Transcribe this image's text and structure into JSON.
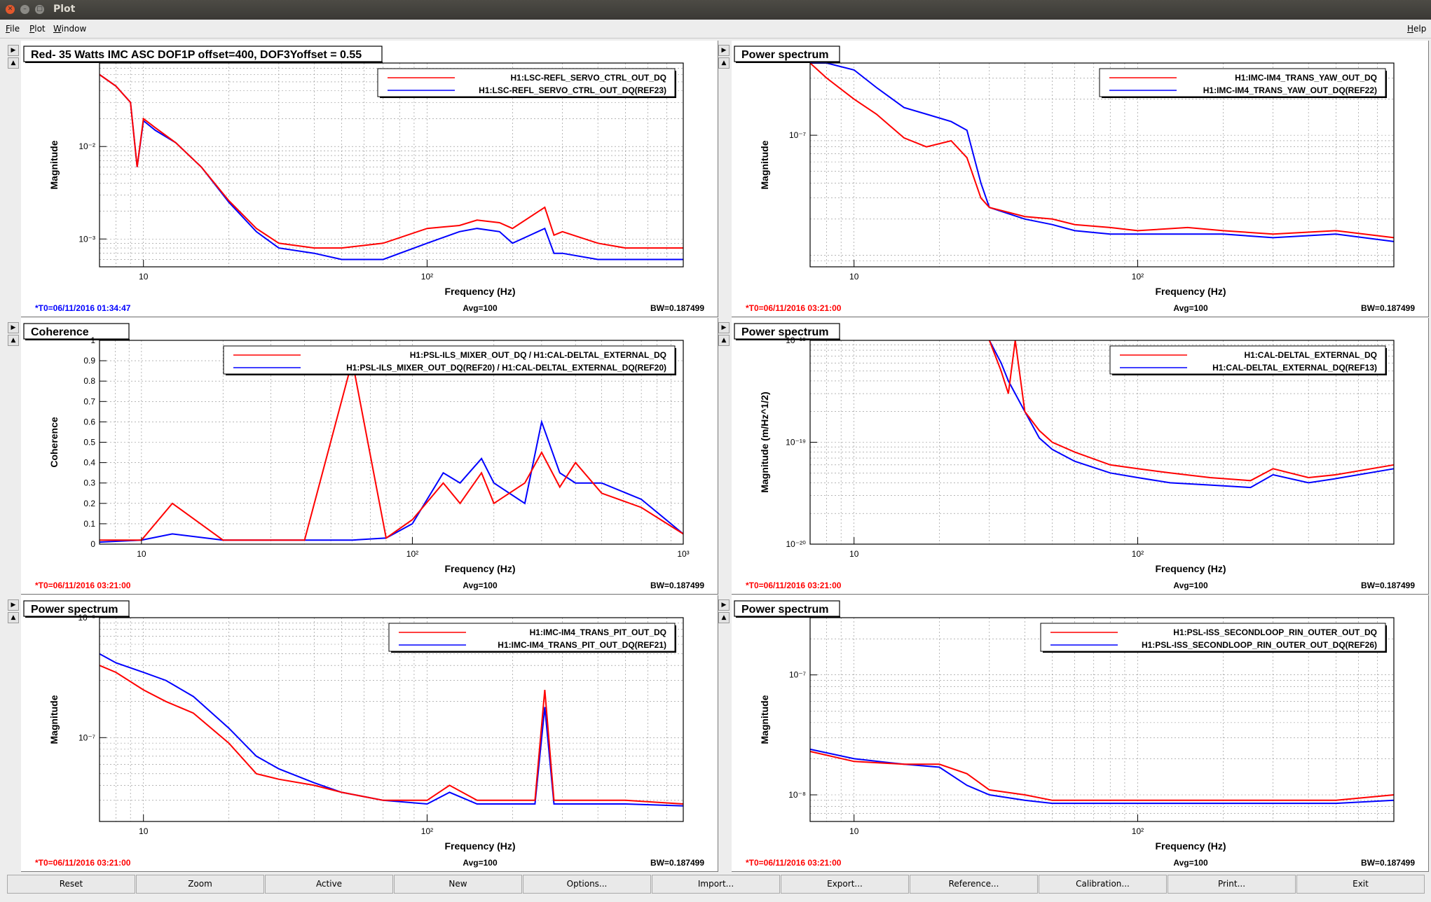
{
  "window": {
    "title": "Plot"
  },
  "menu": {
    "file": "File",
    "plot": "Plot",
    "window": "Window",
    "help": "Help"
  },
  "bottom_buttons": [
    "Reset",
    "Zoom",
    "Active",
    "New",
    "Options...",
    "Import...",
    "Export...",
    "Reference...",
    "Calibration...",
    "Print...",
    "Exit"
  ],
  "colors": {
    "trace_current": "#ff0000",
    "trace_reference": "#0000ff",
    "timestamp_current": "#ff0000",
    "timestamp_reference": "#0000ff"
  },
  "panels": [
    {
      "title": "Red- 35 Watts IMC ASC DOF1P offset=400, DOF3Yoffset = 0.55",
      "xlabel": "Frequency (Hz)",
      "ylabel": "Magnitude",
      "legend": [
        "H1:LSC-REFL_SERVO_CTRL_OUT_DQ",
        "H1:LSC-REFL_SERVO_CTRL_OUT_DQ(REF23)"
      ],
      "xticks": [
        "10",
        "10²"
      ],
      "yticks": [
        "10⁻²",
        "10⁻³"
      ],
      "t0": "*T0=06/11/2016 01:34:47",
      "t0_color": "#0000ff",
      "avg": "Avg=100",
      "bw": "BW=0.187499"
    },
    {
      "title": "Power spectrum",
      "xlabel": "Frequency (Hz)",
      "ylabel": "Magnitude",
      "legend": [
        "H1:IMC-IM4_TRANS_YAW_OUT_DQ",
        "H1:IMC-IM4_TRANS_YAW_OUT_DQ(REF22)"
      ],
      "xticks": [
        "10",
        "10²"
      ],
      "yticks": [
        "10⁻⁷"
      ],
      "t0": "*T0=06/11/2016 03:21:00",
      "t0_color": "#ff0000",
      "avg": "Avg=100",
      "bw": "BW=0.187499"
    },
    {
      "title": "Coherence",
      "xlabel": "Frequency (Hz)",
      "ylabel": "Coherence",
      "legend": [
        "H1:PSL-ILS_MIXER_OUT_DQ / H1:CAL-DELTAL_EXTERNAL_DQ",
        "H1:PSL-ILS_MIXER_OUT_DQ(REF20) / H1:CAL-DELTAL_EXTERNAL_DQ(REF20)"
      ],
      "xticks": [
        "10",
        "10²",
        "10³"
      ],
      "yticks": [
        "1",
        "0.9",
        "0.8",
        "0.7",
        "0.6",
        "0.5",
        "0.4",
        "0.3",
        "0.2",
        "0.1",
        "0"
      ],
      "t0": "*T0=06/11/2016 03:21:00",
      "t0_color": "#ff0000",
      "avg": "Avg=100",
      "bw": "BW=0.187499"
    },
    {
      "title": "Power spectrum",
      "xlabel": "Frequency (Hz)",
      "ylabel": "Magnitude (m/Hz^1/2)",
      "legend": [
        "H1:CAL-DELTAL_EXTERNAL_DQ",
        "H1:CAL-DELTAL_EXTERNAL_DQ(REF13)"
      ],
      "xticks": [
        "10",
        "10²"
      ],
      "yticks": [
        "10⁻¹⁸",
        "10⁻¹⁹",
        "10⁻²⁰"
      ],
      "t0": "*T0=06/11/2016 03:21:00",
      "t0_color": "#ff0000",
      "avg": "Avg=100",
      "bw": "BW=0.187499"
    },
    {
      "title": "Power spectrum",
      "xlabel": "Frequency (Hz)",
      "ylabel": "Magnitude",
      "legend": [
        "H1:IMC-IM4_TRANS_PIT_OUT_DQ",
        "H1:IMC-IM4_TRANS_PIT_OUT_DQ(REF21)"
      ],
      "xticks": [
        "10",
        "10²"
      ],
      "yticks": [
        "10⁻⁶",
        "10⁻⁷"
      ],
      "t0": "*T0=06/11/2016 03:21:00",
      "t0_color": "#ff0000",
      "avg": "Avg=100",
      "bw": "BW=0.187499"
    },
    {
      "title": "Power spectrum",
      "xlabel": "Frequency (Hz)",
      "ylabel": "Magnitude",
      "legend": [
        "H1:PSL-ISS_SECONDLOOP_RIN_OUTER_OUT_DQ",
        "H1:PSL-ISS_SECONDLOOP_RIN_OUTER_OUT_DQ(REF26)"
      ],
      "xticks": [
        "10",
        "10²"
      ],
      "yticks": [
        "10⁻⁷",
        "10⁻⁸"
      ],
      "t0": "*T0=06/11/2016 03:21:00",
      "t0_color": "#ff0000",
      "avg": "Avg=100",
      "bw": "BW=0.187499"
    }
  ],
  "chart_data": [
    {
      "type": "line",
      "title": "Red- 35 Watts IMC ASC DOF1P offset=400, DOF3Yoffset = 0.55",
      "xlabel": "Frequency (Hz)",
      "ylabel": "Magnitude",
      "xscale": "log",
      "yscale": "log",
      "xlim": [
        7,
        800
      ],
      "ylim": [
        0.0005,
        0.08
      ],
      "grid": true,
      "legend_position": "top-right",
      "series": [
        {
          "name": "H1:LSC-REFL_SERVO_CTRL_OUT_DQ",
          "x": [
            7,
            8,
            9,
            9.5,
            10,
            11,
            13,
            16,
            20,
            25,
            30,
            40,
            50,
            70,
            100,
            130,
            150,
            180,
            200,
            260,
            280,
            300,
            400,
            500,
            800
          ],
          "y": [
            0.06,
            0.045,
            0.03,
            0.006,
            0.02,
            0.016,
            0.011,
            0.006,
            0.0026,
            0.0013,
            0.0009,
            0.0008,
            0.0008,
            0.0009,
            0.0013,
            0.0014,
            0.0016,
            0.0015,
            0.0013,
            0.0022,
            0.0011,
            0.0012,
            0.0009,
            0.0008,
            0.0008
          ]
        },
        {
          "name": "H1:LSC-REFL_SERVO_CTRL_OUT_DQ(REF23)",
          "x": [
            7,
            8,
            9,
            9.5,
            10,
            11,
            13,
            16,
            20,
            25,
            30,
            40,
            50,
            70,
            100,
            130,
            150,
            180,
            200,
            260,
            280,
            300,
            400,
            500,
            800
          ],
          "y": [
            0.06,
            0.045,
            0.03,
            0.006,
            0.019,
            0.015,
            0.011,
            0.006,
            0.0025,
            0.0012,
            0.0008,
            0.0007,
            0.0006,
            0.0006,
            0.0009,
            0.0012,
            0.0013,
            0.0012,
            0.0009,
            0.0013,
            0.0007,
            0.0007,
            0.0006,
            0.0006,
            0.0006
          ]
        }
      ]
    },
    {
      "type": "line",
      "title": "Power spectrum",
      "xlabel": "Frequency (Hz)",
      "ylabel": "Magnitude",
      "xscale": "log",
      "yscale": "log",
      "xlim": [
        7,
        800
      ],
      "ylim": [
        8e-09,
        4e-07
      ],
      "grid": true,
      "legend_position": "top-right",
      "series": [
        {
          "name": "H1:IMC-IM4_TRANS_YAW_OUT_DQ",
          "x": [
            7,
            8,
            10,
            12,
            15,
            18,
            22,
            25,
            28,
            30,
            40,
            50,
            60,
            80,
            100,
            150,
            200,
            300,
            500,
            800
          ],
          "y": [
            4e-07,
            3e-07,
            2e-07,
            1.5e-07,
            9.5e-08,
            8e-08,
            9e-08,
            6.5e-08,
            3e-08,
            2.5e-08,
            2.1e-08,
            2e-08,
            1.8e-08,
            1.7e-08,
            1.6e-08,
            1.7e-08,
            1.6e-08,
            1.5e-08,
            1.6e-08,
            1.4e-08
          ]
        },
        {
          "name": "H1:IMC-IM4_TRANS_YAW_OUT_DQ(REF22)",
          "x": [
            7,
            8,
            10,
            12,
            15,
            18,
            22,
            25,
            28,
            30,
            40,
            50,
            60,
            80,
            100,
            150,
            200,
            300,
            500,
            800
          ],
          "y": [
            4e-07,
            4e-07,
            3.5e-07,
            2.5e-07,
            1.7e-07,
            1.5e-07,
            1.3e-07,
            1.1e-07,
            4e-08,
            2.5e-08,
            2e-08,
            1.8e-08,
            1.6e-08,
            1.5e-08,
            1.5e-08,
            1.5e-08,
            1.5e-08,
            1.4e-08,
            1.5e-08,
            1.3e-08
          ]
        }
      ]
    },
    {
      "type": "line",
      "title": "Coherence",
      "xlabel": "Frequency (Hz)",
      "ylabel": "Coherence",
      "xscale": "log",
      "xlim": [
        7,
        1000
      ],
      "ylim": [
        0,
        1
      ],
      "grid": true,
      "legend_position": "top",
      "series": [
        {
          "name": "H1:PSL-ILS_MIXER_OUT_DQ / H1:CAL-DELTAL_EXTERNAL_DQ",
          "x": [
            7,
            10,
            13,
            20,
            40,
            60,
            80,
            100,
            130,
            150,
            180,
            200,
            260,
            300,
            350,
            400,
            500,
            700,
            1000
          ],
          "y": [
            0.02,
            0.02,
            0.2,
            0.02,
            0.02,
            0.9,
            0.03,
            0.12,
            0.3,
            0.2,
            0.35,
            0.2,
            0.3,
            0.45,
            0.28,
            0.4,
            0.25,
            0.18,
            0.05
          ]
        },
        {
          "name": "H1:PSL-ILS_MIXER_OUT_DQ(REF20) / H1:CAL-DELTAL_EXTERNAL_DQ(REF20)",
          "x": [
            7,
            10,
            13,
            20,
            40,
            60,
            80,
            100,
            130,
            150,
            180,
            200,
            260,
            300,
            350,
            400,
            500,
            700,
            1000
          ],
          "y": [
            0.01,
            0.02,
            0.05,
            0.02,
            0.02,
            0.02,
            0.03,
            0.1,
            0.35,
            0.3,
            0.42,
            0.3,
            0.2,
            0.6,
            0.35,
            0.3,
            0.3,
            0.22,
            0.05
          ]
        }
      ]
    },
    {
      "type": "line",
      "title": "Power spectrum",
      "xlabel": "Frequency (Hz)",
      "ylabel": "Magnitude (m/Hz^1/2)",
      "xscale": "log",
      "yscale": "log",
      "xlim": [
        7,
        800
      ],
      "ylim": [
        1e-20,
        1e-18
      ],
      "grid": true,
      "legend_position": "top-right",
      "series": [
        {
          "name": "H1:CAL-DELTAL_EXTERNAL_DQ",
          "x": [
            30,
            33,
            35,
            37,
            40,
            45,
            50,
            60,
            80,
            100,
            130,
            180,
            250,
            300,
            400,
            500,
            800
          ],
          "y": [
            1e-18,
            5e-19,
            3e-19,
            1e-18,
            2e-19,
            1.3e-19,
            1e-19,
            8e-20,
            6e-20,
            5.5e-20,
            5e-20,
            4.5e-20,
            4.2e-20,
            5.5e-20,
            4.5e-20,
            4.8e-20,
            6e-20
          ]
        },
        {
          "name": "H1:CAL-DELTAL_EXTERNAL_DQ(REF13)",
          "x": [
            30,
            33,
            35,
            37,
            40,
            45,
            50,
            60,
            80,
            100,
            130,
            180,
            250,
            300,
            400,
            500,
            800
          ],
          "y": [
            1e-18,
            6e-19,
            4e-19,
            3e-19,
            2e-19,
            1.1e-19,
            8.5e-20,
            6.5e-20,
            5e-20,
            4.5e-20,
            4e-20,
            3.8e-20,
            3.6e-20,
            4.8e-20,
            4e-20,
            4.4e-20,
            5.5e-20
          ]
        }
      ]
    },
    {
      "type": "line",
      "title": "Power spectrum",
      "xlabel": "Frequency (Hz)",
      "ylabel": "Magnitude",
      "xscale": "log",
      "yscale": "log",
      "xlim": [
        7,
        800
      ],
      "ylim": [
        2e-08,
        1e-06
      ],
      "grid": true,
      "legend_position": "top-right",
      "series": [
        {
          "name": "H1:IMC-IM4_TRANS_PIT_OUT_DQ",
          "x": [
            7,
            8,
            10,
            12,
            15,
            20,
            25,
            30,
            40,
            50,
            70,
            100,
            120,
            150,
            200,
            240,
            260,
            280,
            300,
            500,
            800
          ],
          "y": [
            4e-07,
            3.5e-07,
            2.5e-07,
            2e-07,
            1.6e-07,
            9e-08,
            5e-08,
            4.5e-08,
            4e-08,
            3.5e-08,
            3e-08,
            3e-08,
            4e-08,
            3e-08,
            3e-08,
            3e-08,
            2.5e-07,
            3e-08,
            3e-08,
            3e-08,
            2.8e-08
          ]
        },
        {
          "name": "H1:IMC-IM4_TRANS_PIT_OUT_DQ(REF21)",
          "x": [
            7,
            8,
            10,
            12,
            15,
            20,
            25,
            30,
            40,
            50,
            70,
            100,
            120,
            150,
            200,
            240,
            260,
            280,
            300,
            500,
            800
          ],
          "y": [
            5e-07,
            4.2e-07,
            3.5e-07,
            3e-07,
            2.2e-07,
            1.2e-07,
            7e-08,
            5.5e-08,
            4.2e-08,
            3.5e-08,
            3e-08,
            2.8e-08,
            3.5e-08,
            2.8e-08,
            2.8e-08,
            2.8e-08,
            1.8e-07,
            2.8e-08,
            2.8e-08,
            2.8e-08,
            2.7e-08
          ]
        }
      ]
    },
    {
      "type": "line",
      "title": "Power spectrum",
      "xlabel": "Frequency (Hz)",
      "ylabel": "Magnitude",
      "xscale": "log",
      "yscale": "log",
      "xlim": [
        7,
        800
      ],
      "ylim": [
        6e-09,
        3e-07
      ],
      "grid": true,
      "legend_position": "top-right",
      "series": [
        {
          "name": "H1:PSL-ISS_SECONDLOOP_RIN_OUTER_OUT_DQ",
          "x": [
            7,
            10,
            15,
            20,
            25,
            30,
            40,
            50,
            60,
            80,
            100,
            150,
            200,
            300,
            500,
            800
          ],
          "y": [
            2.3e-08,
            1.9e-08,
            1.8e-08,
            1.8e-08,
            1.5e-08,
            1.1e-08,
            1e-08,
            9e-09,
            9e-09,
            9e-09,
            9e-09,
            9e-09,
            9e-09,
            9e-09,
            9e-09,
            1e-08
          ]
        },
        {
          "name": "H1:PSL-ISS_SECONDLOOP_RIN_OUTER_OUT_DQ(REF26)",
          "x": [
            7,
            10,
            15,
            20,
            25,
            30,
            40,
            50,
            60,
            80,
            100,
            150,
            200,
            300,
            500,
            800
          ],
          "y": [
            2.4e-08,
            2e-08,
            1.8e-08,
            1.7e-08,
            1.2e-08,
            1e-08,
            9e-09,
            8.5e-09,
            8.5e-09,
            8.5e-09,
            8.5e-09,
            8.5e-09,
            8.5e-09,
            8.5e-09,
            8.5e-09,
            9e-09
          ]
        }
      ]
    }
  ]
}
